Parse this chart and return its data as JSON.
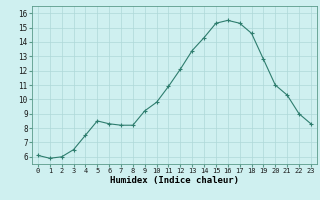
{
  "x": [
    0,
    1,
    2,
    3,
    4,
    5,
    6,
    7,
    8,
    9,
    10,
    11,
    12,
    13,
    14,
    15,
    16,
    17,
    18,
    19,
    20,
    21,
    22,
    23
  ],
  "y": [
    6.1,
    5.9,
    6.0,
    6.5,
    7.5,
    8.5,
    8.3,
    8.2,
    8.2,
    9.2,
    9.8,
    10.9,
    12.1,
    13.4,
    14.3,
    15.3,
    15.5,
    15.3,
    14.6,
    12.8,
    11.0,
    10.3,
    9.0,
    8.3
  ],
  "line_color": "#2e7d6e",
  "marker": "+",
  "marker_color": "#2e7d6e",
  "bg_color": "#cff0f0",
  "grid_color": "#aed8d8",
  "xlabel": "Humidex (Indice chaleur)",
  "xlim": [
    -0.5,
    23.5
  ],
  "ylim": [
    5.5,
    16.5
  ],
  "yticks": [
    6,
    7,
    8,
    9,
    10,
    11,
    12,
    13,
    14,
    15,
    16
  ],
  "xticks": [
    0,
    1,
    2,
    3,
    4,
    5,
    6,
    7,
    8,
    9,
    10,
    11,
    12,
    13,
    14,
    15,
    16,
    17,
    18,
    19,
    20,
    21,
    22,
    23
  ]
}
